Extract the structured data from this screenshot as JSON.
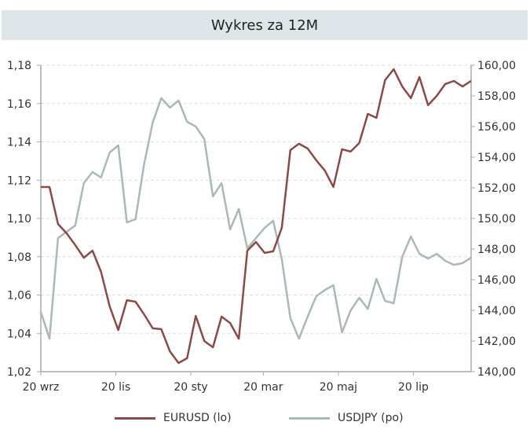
{
  "chart_data": {
    "type": "line",
    "title": "Wykres za 12M",
    "x_start": "2024-09-20",
    "x_step_days": 7,
    "x_ticks": [
      {
        "date": "2024-09-20",
        "label": "20 wrz"
      },
      {
        "date": "2024-11-20",
        "label": "20 lis"
      },
      {
        "date": "2025-01-20",
        "label": "20 sty"
      },
      {
        "date": "2025-03-20",
        "label": "20 mar"
      },
      {
        "date": "2025-05-20",
        "label": "20 maj"
      },
      {
        "date": "2025-07-20",
        "label": "20 lip"
      }
    ],
    "y_left": {
      "range": [
        1.02,
        1.18
      ],
      "ticks": [
        "1,02",
        "1,04",
        "1,06",
        "1,08",
        "1,10",
        "1,12",
        "1,14",
        "1,16",
        "1,18"
      ]
    },
    "y_right": {
      "range": [
        140,
        160
      ],
      "ticks": [
        "140,00",
        "142,00",
        "144,00",
        "146,00",
        "148,00",
        "150,00",
        "152,00",
        "154,00",
        "156,00",
        "158,00",
        "160,00"
      ]
    },
    "grid": true,
    "legend_position": "bottom",
    "series": [
      {
        "name": "EURUSD (lo)",
        "axis": "left",
        "color": "#8b4a47",
        "values": [
          1.1164,
          1.1164,
          1.0971,
          1.0922,
          1.0861,
          1.0795,
          1.0832,
          1.0721,
          1.0541,
          1.0417,
          1.0573,
          1.0565,
          1.0499,
          1.0426,
          1.0422,
          1.0306,
          1.0245,
          1.027,
          1.0491,
          1.036,
          1.0327,
          1.0487,
          1.0454,
          1.0372,
          1.0832,
          1.0877,
          1.082,
          1.0828,
          1.0951,
          1.1357,
          1.139,
          1.1365,
          1.1304,
          1.125,
          1.1164,
          1.1361,
          1.1349,
          1.1394,
          1.1546,
          1.1525,
          1.1722,
          1.1779,
          1.1689,
          1.1628,
          1.1738,
          1.1591,
          1.164,
          1.1702,
          1.1718,
          1.1689,
          1.1718
        ]
      },
      {
        "name": "USDJPY (po)",
        "axis": "right",
        "color": "#aab9b4",
        "values": [
          143.9,
          142.15,
          148.72,
          149.13,
          149.54,
          152.31,
          153.03,
          152.67,
          154.31,
          154.77,
          149.74,
          149.95,
          153.54,
          156.26,
          157.85,
          157.23,
          157.69,
          156.31,
          156.0,
          155.18,
          151.44,
          152.31,
          149.28,
          150.62,
          148.05,
          148.72,
          149.38,
          149.85,
          147.33,
          143.49,
          142.15,
          143.59,
          144.92,
          145.33,
          145.64,
          142.56,
          144.0,
          144.82,
          144.1,
          146.05,
          144.62,
          144.46,
          147.49,
          148.82,
          147.69,
          147.38,
          147.69,
          147.23,
          146.97,
          147.08,
          147.44
        ]
      }
    ]
  }
}
